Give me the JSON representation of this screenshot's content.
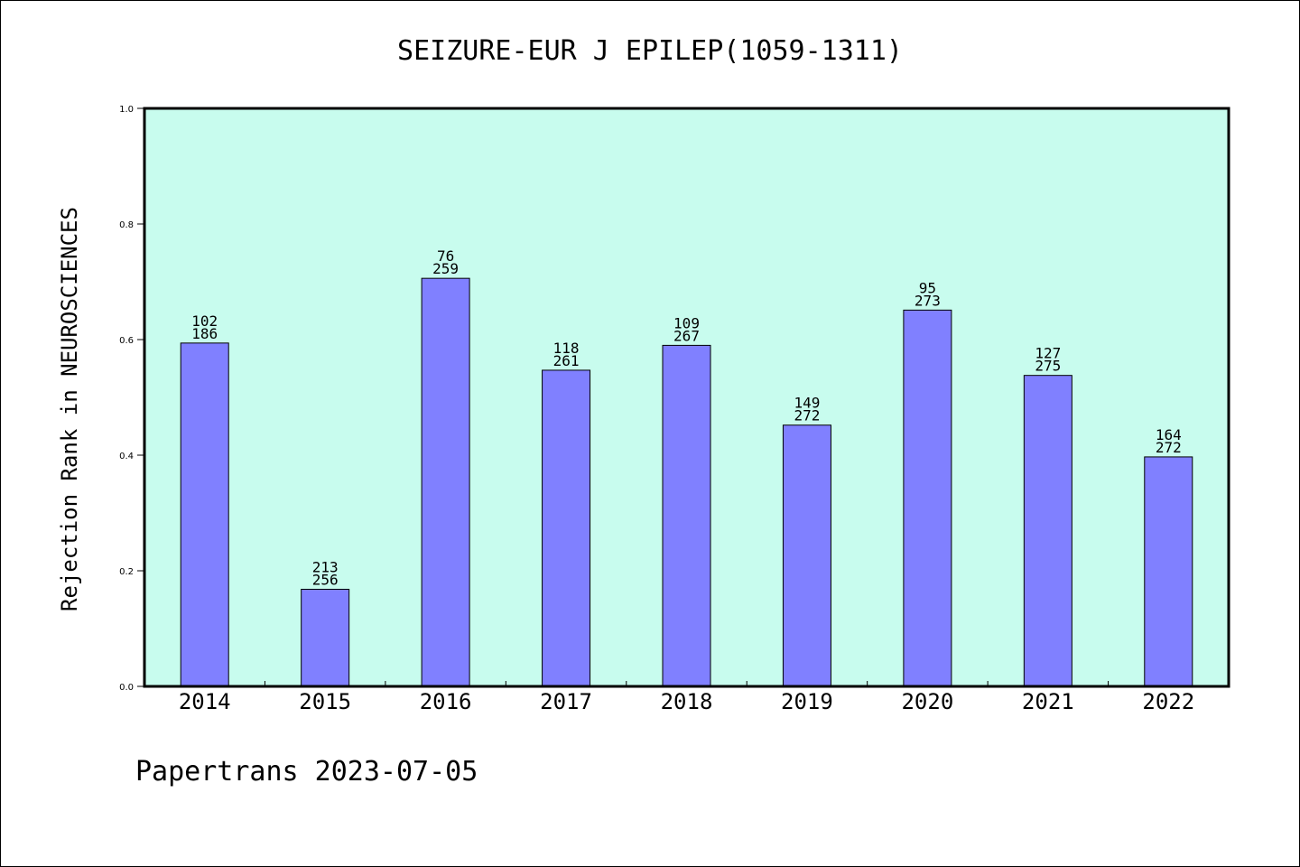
{
  "chart_data": {
    "type": "bar",
    "title": "SEIZURE-EUR J EPILEP(1059-1311)",
    "ylabel": "Rejection Rank in NEUROSCIENCES",
    "xlabel": "",
    "ylim": [
      0,
      1.0
    ],
    "yticks": [
      "0.0",
      "0.2",
      "0.4",
      "0.6",
      "0.8",
      "1.0"
    ],
    "categories": [
      "2014",
      "2015",
      "2016",
      "2017",
      "2018",
      "2019",
      "2020",
      "2021",
      "2022"
    ],
    "values": [
      0.594,
      0.168,
      0.706,
      0.547,
      0.59,
      0.452,
      0.651,
      0.538,
      0.397
    ],
    "label_top": [
      "102",
      "213",
      "76",
      "118",
      "109",
      "149",
      "95",
      "127",
      "164"
    ],
    "label_bottom": [
      "186",
      "256",
      "259",
      "261",
      "267",
      "272",
      "273",
      "275",
      "272"
    ],
    "grid": false,
    "colors": {
      "plot_background": "#c8fcee",
      "bar_fill": "#8080ff",
      "bar_stroke": "#000000"
    }
  },
  "footer": {
    "text": "Papertrans 2023-07-05"
  }
}
